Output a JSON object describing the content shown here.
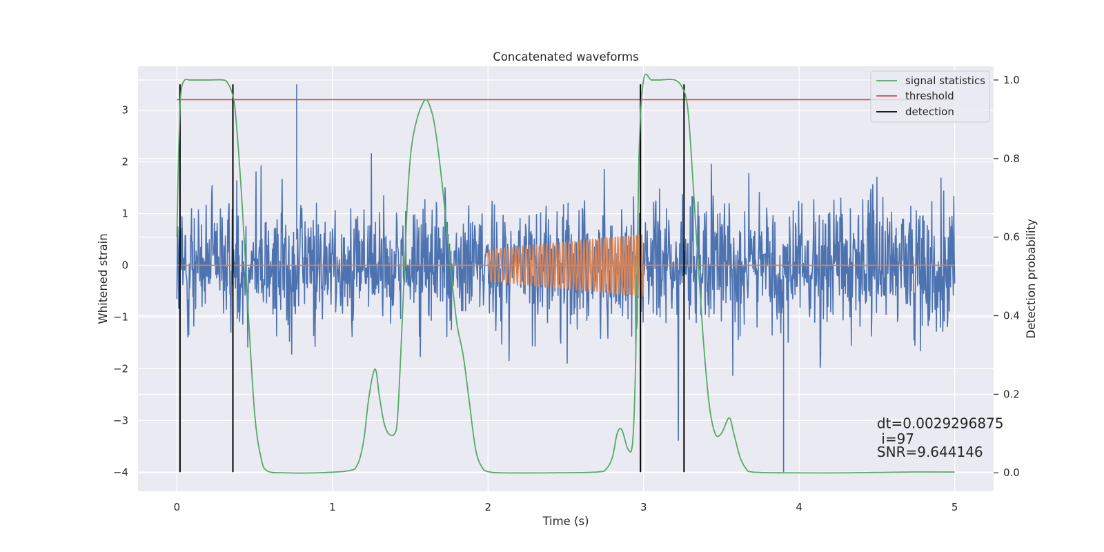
{
  "chart_data": {
    "type": "line",
    "title": "Concatenated waveforms",
    "xlabel": "Time (s)",
    "ylabel": "Whitened strain",
    "y2label": "Detection probability",
    "xlim": [
      -0.25,
      5.25
    ],
    "ylim": [
      -4.37,
      3.85
    ],
    "y2lim": [
      -0.047,
      1.035
    ],
    "xticks": [
      0,
      1,
      2,
      3,
      4,
      5
    ],
    "yticks": [
      -4,
      -3,
      -2,
      -1,
      0,
      1,
      2,
      3
    ],
    "y2ticks": [
      0.0,
      0.2,
      0.4,
      0.6,
      0.8,
      1.0
    ],
    "xtick_labels": [
      "0",
      "1",
      "2",
      "3",
      "4",
      "5"
    ],
    "ytick_labels": [
      "−4",
      "−3",
      "−2",
      "−1",
      "0",
      "1",
      "2",
      "3"
    ],
    "y2tick_labels": [
      "0.0",
      "0.2",
      "0.4",
      "0.6",
      "0.8",
      "1.0"
    ],
    "grid": true,
    "legend_position": "top-right",
    "colors": {
      "noise": "#4c72b0",
      "waveform": "#dd8452",
      "signal_statistics": "#55a868",
      "threshold": "#c44e52",
      "detection": "#000000",
      "background": "#eaeaf2",
      "grid": "#ffffff"
    },
    "series": [
      {
        "name": "signal statistics",
        "axis": "right",
        "x": [
          0.0,
          0.01,
          0.02,
          0.03,
          0.05,
          0.08,
          0.1,
          0.2,
          0.3,
          0.33,
          0.36,
          0.38,
          0.42,
          0.46,
          0.5,
          0.54,
          0.58,
          0.7,
          0.9,
          1.1,
          1.16,
          1.2,
          1.23,
          1.26,
          1.28,
          1.3,
          1.33,
          1.36,
          1.4,
          1.42,
          1.45,
          1.48,
          1.5,
          1.52,
          1.55,
          1.58,
          1.6,
          1.62,
          1.65,
          1.68,
          1.72,
          1.76,
          1.8,
          1.84,
          1.88,
          1.92,
          1.96,
          2.0,
          2.1,
          2.4,
          2.7,
          2.76,
          2.8,
          2.83,
          2.86,
          2.9,
          2.93,
          2.95,
          2.97,
          3.0,
          3.05,
          3.1,
          3.2,
          3.25,
          3.28,
          3.3,
          3.34,
          3.38,
          3.42,
          3.46,
          3.5,
          3.55,
          3.58,
          3.62,
          3.66,
          3.7,
          3.9,
          4.3,
          4.7,
          5.0
        ],
        "values": [
          0.6,
          0.8,
          0.93,
          0.98,
          1.0,
          1.0,
          1.0,
          1.0,
          1.0,
          0.99,
          0.96,
          0.9,
          0.68,
          0.4,
          0.15,
          0.04,
          0.005,
          0.0,
          0.0,
          0.005,
          0.02,
          0.08,
          0.18,
          0.25,
          0.26,
          0.2,
          0.13,
          0.1,
          0.1,
          0.15,
          0.4,
          0.68,
          0.8,
          0.86,
          0.91,
          0.94,
          0.95,
          0.94,
          0.9,
          0.82,
          0.68,
          0.52,
          0.38,
          0.3,
          0.18,
          0.06,
          0.015,
          0.003,
          0.0,
          0.0,
          0.002,
          0.01,
          0.04,
          0.1,
          0.11,
          0.06,
          0.08,
          0.3,
          0.8,
          1.0,
          1.0,
          1.0,
          1.0,
          0.98,
          0.94,
          0.85,
          0.6,
          0.36,
          0.18,
          0.1,
          0.1,
          0.14,
          0.1,
          0.04,
          0.01,
          0.002,
          0.0,
          0.0,
          0.002,
          0.002
        ]
      },
      {
        "name": "threshold",
        "axis": "right",
        "x": [
          0.0,
          5.0
        ],
        "values": [
          0.95,
          0.95
        ]
      },
      {
        "name": "detection",
        "axis": "left",
        "x": [
          0.02,
          0.36,
          2.98,
          3.26
        ],
        "y_range": [
          -4.0,
          3.5
        ]
      },
      {
        "name": "",
        "axis": "left",
        "role": "whitened noise",
        "x_range": [
          0.0,
          5.0
        ],
        "y_extent": [
          -4.0,
          3.5
        ]
      },
      {
        "name": "",
        "axis": "left",
        "role": "injected chirp",
        "x_range": [
          2.0,
          3.0
        ],
        "amplitude_start": 0.3,
        "amplitude_end": 0.6,
        "cycles": 50
      }
    ],
    "annotations": [
      {
        "text": "dt=0.0029296875",
        "x": 4.5,
        "y": -3.15
      },
      {
        "text": " i=97",
        "x": 4.5,
        "y": -3.45
      },
      {
        "text": "SNR=9.644146",
        "x": 4.5,
        "y": -3.7
      }
    ]
  }
}
